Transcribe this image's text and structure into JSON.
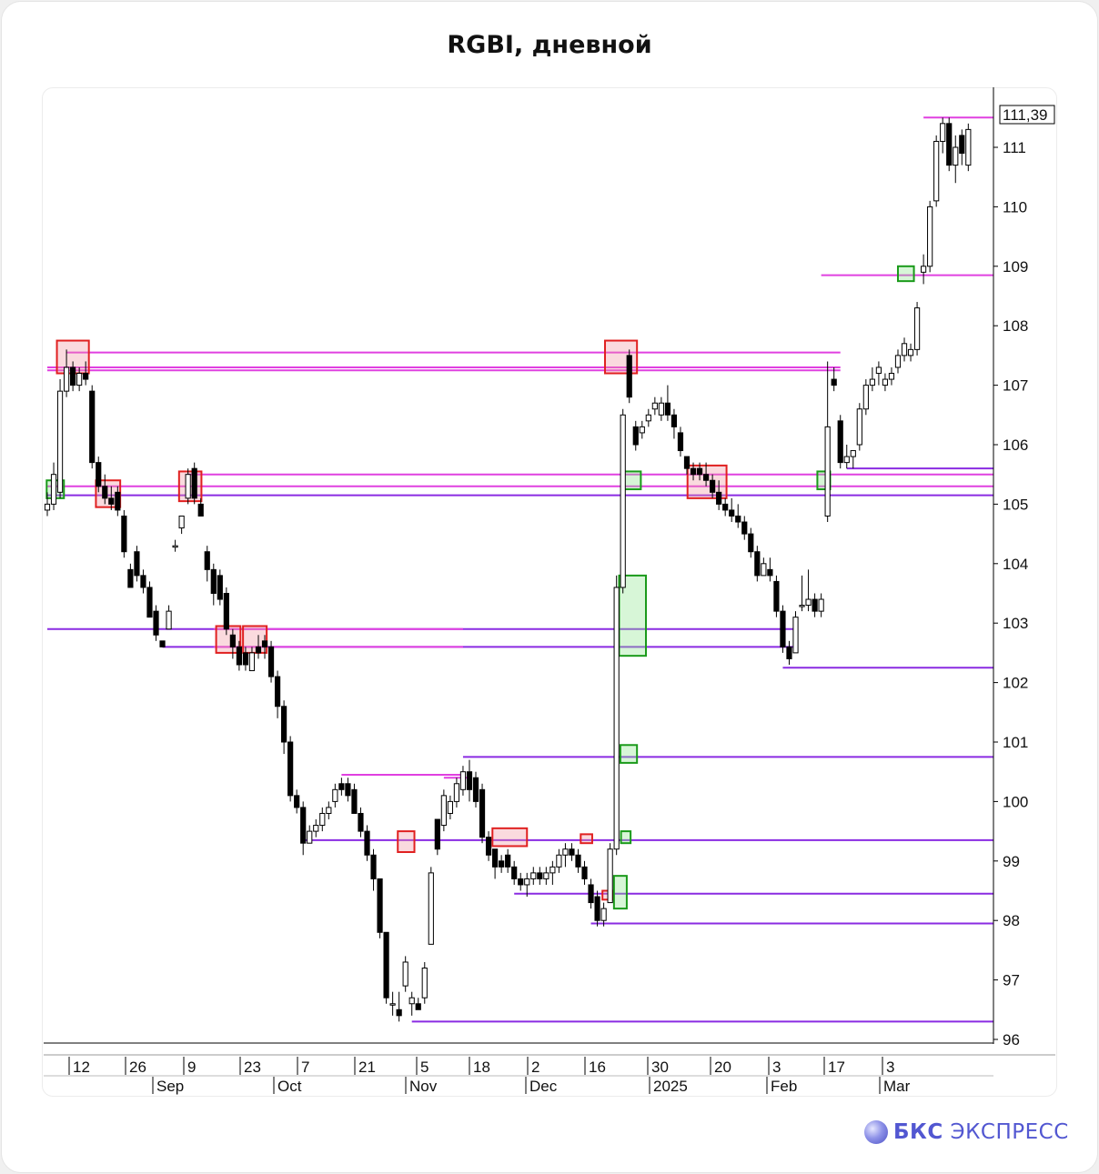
{
  "title": "RGBI, дневной",
  "logo": {
    "brand_bold": "БКС",
    "brand_rest": " ЭКСПРЕСС"
  },
  "chart_data": {
    "type": "candlestick",
    "title": "RGBI, дневной",
    "last_price_label": "111,39",
    "ylim": [
      96,
      112.5
    ],
    "y_ticks": [
      "96",
      "97",
      "98",
      "99",
      "100",
      "101",
      "102",
      "103",
      "104",
      "105",
      "106",
      "107",
      "108",
      "109",
      "110",
      "111"
    ],
    "x_day_ticks": [
      "12",
      "26",
      "9",
      "23",
      "7",
      "21",
      "5",
      "18",
      "2",
      "16",
      "30",
      "20",
      "3",
      "17",
      "3"
    ],
    "x_month_ticks": [
      "Sep",
      "Oct",
      "Nov",
      "Dec",
      "2025",
      "Feb",
      "Mar"
    ],
    "colors": {
      "down": "#000000",
      "up": "#ffffff",
      "magenta": "#e040e0",
      "purple": "#8a2be2",
      "red_box": "#e02020",
      "green_box": "#1a9a1a"
    },
    "candles": [
      [
        104.9,
        105.2,
        104.8,
        105.0
      ],
      [
        105.0,
        105.7,
        104.9,
        105.5
      ],
      [
        105.2,
        107.1,
        105.1,
        106.9
      ],
      [
        106.9,
        107.6,
        106.8,
        107.3
      ],
      [
        107.3,
        107.4,
        106.9,
        107.0
      ],
      [
        107.0,
        107.3,
        106.9,
        107.2
      ],
      [
        107.2,
        107.4,
        107.0,
        107.1
      ],
      [
        106.9,
        107.0,
        105.6,
        105.7
      ],
      [
        105.7,
        105.8,
        105.2,
        105.3
      ],
      [
        105.3,
        105.5,
        105.0,
        105.1
      ],
      [
        105.1,
        105.3,
        104.9,
        105.0
      ],
      [
        105.2,
        105.3,
        104.8,
        104.9
      ],
      [
        104.8,
        104.9,
        104.1,
        104.2
      ],
      [
        103.9,
        104.0,
        103.6,
        103.6
      ],
      [
        104.2,
        104.3,
        103.7,
        103.8
      ],
      [
        103.8,
        103.9,
        103.5,
        103.6
      ],
      [
        103.6,
        103.7,
        103.1,
        103.1
      ],
      [
        103.2,
        103.3,
        102.7,
        102.8
      ],
      [
        102.7,
        102.7,
        102.6,
        102.6
      ],
      [
        102.9,
        103.3,
        102.9,
        103.2
      ],
      [
        104.3,
        104.4,
        104.2,
        104.3
      ],
      [
        104.6,
        104.8,
        104.5,
        104.8
      ],
      [
        105.1,
        105.6,
        105.0,
        105.5
      ],
      [
        105.6,
        105.7,
        105.0,
        105.1
      ],
      [
        105.0,
        105.1,
        104.8,
        104.8
      ],
      [
        104.2,
        104.3,
        103.7,
        103.9
      ],
      [
        103.9,
        104.0,
        103.3,
        103.5
      ],
      [
        103.8,
        103.9,
        103.3,
        103.4
      ],
      [
        103.5,
        103.6,
        102.8,
        102.9
      ],
      [
        102.8,
        102.9,
        102.4,
        102.6
      ],
      [
        102.6,
        102.7,
        102.2,
        102.3
      ],
      [
        102.5,
        102.6,
        102.2,
        102.3
      ],
      [
        102.2,
        102.6,
        102.2,
        102.5
      ],
      [
        102.6,
        102.8,
        102.4,
        102.5
      ],
      [
        102.7,
        102.8,
        102.4,
        102.6
      ],
      [
        102.6,
        102.7,
        102.0,
        102.1
      ],
      [
        102.1,
        102.2,
        101.4,
        101.6
      ],
      [
        101.6,
        101.7,
        100.8,
        101.0
      ],
      [
        101.0,
        101.1,
        100.0,
        100.1
      ],
      [
        100.1,
        100.2,
        99.8,
        99.9
      ],
      [
        99.9,
        100.0,
        99.1,
        99.3
      ],
      [
        99.3,
        99.6,
        99.3,
        99.5
      ],
      [
        99.5,
        99.7,
        99.4,
        99.6
      ],
      [
        99.6,
        99.9,
        99.5,
        99.8
      ],
      [
        99.8,
        100.0,
        99.7,
        99.9
      ],
      [
        100.0,
        100.3,
        99.9,
        100.2
      ],
      [
        100.3,
        100.4,
        100.1,
        100.2
      ],
      [
        100.3,
        100.4,
        100.0,
        100.1
      ],
      [
        100.2,
        100.3,
        99.8,
        99.8
      ],
      [
        99.8,
        99.9,
        99.4,
        99.5
      ],
      [
        99.5,
        99.6,
        99.0,
        99.1
      ],
      [
        99.1,
        99.2,
        98.5,
        98.7
      ],
      [
        98.7,
        98.7,
        97.7,
        97.8
      ],
      [
        97.8,
        97.8,
        96.6,
        96.7
      ],
      [
        96.6,
        96.8,
        96.4,
        96.6
      ],
      [
        96.5,
        96.8,
        96.3,
        96.4
      ],
      [
        96.9,
        97.4,
        96.8,
        97.3
      ],
      [
        96.6,
        96.8,
        96.4,
        96.7
      ],
      [
        96.6,
        96.7,
        96.5,
        96.5
      ],
      [
        96.7,
        97.3,
        96.6,
        97.2
      ],
      [
        97.6,
        98.9,
        97.6,
        98.8
      ],
      [
        99.7,
        99.7,
        99.1,
        99.2
      ],
      [
        99.6,
        100.2,
        99.5,
        100.1
      ],
      [
        99.8,
        100.1,
        99.7,
        100.0
      ],
      [
        100.0,
        100.4,
        99.9,
        100.3
      ],
      [
        100.2,
        100.6,
        100.1,
        100.5
      ],
      [
        100.5,
        100.7,
        100.0,
        100.2
      ],
      [
        100.4,
        100.5,
        99.9,
        100.0
      ],
      [
        100.2,
        100.3,
        99.3,
        99.4
      ],
      [
        99.4,
        99.5,
        99.0,
        99.1
      ],
      [
        99.2,
        99.2,
        98.7,
        98.9
      ],
      [
        99.0,
        99.1,
        98.8,
        98.9
      ],
      [
        99.1,
        99.2,
        98.8,
        98.9
      ],
      [
        98.9,
        99.0,
        98.6,
        98.7
      ],
      [
        98.7,
        98.8,
        98.5,
        98.6
      ],
      [
        98.6,
        98.8,
        98.4,
        98.7
      ],
      [
        98.7,
        98.9,
        98.6,
        98.8
      ],
      [
        98.8,
        98.9,
        98.6,
        98.7
      ],
      [
        98.7,
        98.9,
        98.6,
        98.8
      ],
      [
        98.8,
        99.0,
        98.6,
        98.9
      ],
      [
        98.9,
        99.2,
        98.8,
        99.1
      ],
      [
        99.1,
        99.3,
        98.9,
        99.2
      ],
      [
        99.2,
        99.3,
        99.0,
        99.1
      ],
      [
        99.1,
        99.2,
        98.8,
        98.9
      ],
      [
        98.9,
        99.0,
        98.6,
        98.7
      ],
      [
        98.6,
        98.7,
        98.2,
        98.3
      ],
      [
        98.4,
        98.5,
        97.9,
        98.0
      ],
      [
        98.0,
        98.3,
        97.9,
        98.2
      ],
      [
        98.3,
        99.3,
        98.3,
        99.2
      ],
      [
        99.2,
        103.8,
        99.1,
        103.6
      ],
      [
        103.6,
        106.6,
        103.5,
        106.5
      ],
      [
        107.5,
        107.6,
        106.7,
        106.8
      ],
      [
        106.3,
        106.4,
        105.9,
        106.0
      ],
      [
        106.2,
        106.4,
        106.1,
        106.3
      ],
      [
        106.4,
        106.6,
        106.3,
        106.5
      ],
      [
        106.6,
        106.8,
        106.5,
        106.7
      ],
      [
        106.5,
        106.8,
        106.4,
        106.7
      ],
      [
        106.7,
        107.0,
        106.4,
        106.5
      ],
      [
        106.5,
        106.6,
        106.1,
        106.3
      ],
      [
        106.2,
        106.3,
        105.8,
        105.9
      ],
      [
        105.8,
        105.8,
        105.5,
        105.6
      ],
      [
        105.6,
        105.7,
        105.4,
        105.5
      ],
      [
        105.6,
        105.7,
        105.4,
        105.5
      ],
      [
        105.5,
        105.7,
        105.3,
        105.4
      ],
      [
        105.4,
        105.5,
        105.1,
        105.2
      ],
      [
        105.2,
        105.4,
        104.9,
        105.0
      ],
      [
        105.0,
        105.1,
        104.8,
        104.9
      ],
      [
        104.9,
        105.1,
        104.7,
        104.8
      ],
      [
        104.8,
        105.0,
        104.6,
        104.7
      ],
      [
        104.7,
        104.8,
        104.4,
        104.5
      ],
      [
        104.5,
        104.6,
        104.1,
        104.2
      ],
      [
        104.2,
        104.3,
        103.7,
        103.8
      ],
      [
        103.8,
        104.1,
        103.8,
        104.0
      ],
      [
        103.9,
        104.1,
        103.7,
        103.8
      ],
      [
        103.7,
        103.8,
        103.1,
        103.2
      ],
      [
        103.2,
        103.3,
        102.5,
        102.6
      ],
      [
        102.6,
        102.7,
        102.3,
        102.4
      ],
      [
        102.5,
        103.2,
        102.5,
        103.1
      ],
      [
        103.3,
        103.8,
        103.2,
        103.3
      ],
      [
        103.3,
        103.9,
        103.2,
        103.4
      ],
      [
        103.4,
        103.5,
        103.1,
        103.2
      ],
      [
        103.2,
        103.5,
        103.1,
        103.4
      ],
      [
        104.8,
        107.4,
        104.7,
        106.3
      ],
      [
        107.1,
        107.3,
        106.9,
        107.0
      ],
      [
        106.4,
        106.5,
        105.6,
        105.7
      ],
      [
        105.7,
        106.0,
        105.6,
        105.8
      ],
      [
        105.8,
        105.9,
        105.6,
        105.9
      ],
      [
        106.0,
        106.7,
        105.9,
        106.6
      ],
      [
        106.6,
        107.1,
        106.5,
        107.0
      ],
      [
        107.0,
        107.3,
        106.9,
        107.1
      ],
      [
        107.2,
        107.4,
        107.0,
        107.3
      ],
      [
        107.0,
        107.2,
        106.9,
        107.1
      ],
      [
        107.1,
        107.3,
        107.0,
        107.2
      ],
      [
        107.3,
        107.6,
        107.2,
        107.5
      ],
      [
        107.5,
        107.8,
        107.4,
        107.7
      ],
      [
        107.5,
        107.7,
        107.4,
        107.6
      ],
      [
        107.6,
        108.4,
        107.5,
        108.3
      ],
      [
        108.9,
        109.2,
        108.7,
        109.0
      ],
      [
        109.0,
        110.1,
        108.9,
        110.0
      ],
      [
        110.1,
        111.2,
        110.0,
        111.1
      ],
      [
        111.1,
        111.5,
        110.9,
        111.4
      ],
      [
        111.4,
        111.5,
        110.6,
        110.7
      ],
      [
        110.7,
        111.2,
        110.4,
        111.0
      ],
      [
        111.2,
        111.3,
        110.7,
        110.9
      ],
      [
        110.7,
        111.4,
        110.6,
        111.3
      ]
    ],
    "levels": [
      {
        "color": "magenta",
        "y": 107.55,
        "from": 3,
        "to": 124
      },
      {
        "color": "magenta",
        "y": 107.3,
        "from": 0,
        "to": 124
      },
      {
        "color": "magenta",
        "y": 107.25,
        "from": 0,
        "to": 124
      },
      {
        "color": "magenta",
        "y": 105.5,
        "from": 22,
        "to": 148
      },
      {
        "color": "magenta",
        "y": 105.3,
        "from": 0,
        "to": 148
      },
      {
        "color": "purple",
        "y": 105.15,
        "from": 0,
        "to": 148
      },
      {
        "color": "purple",
        "y": 105.6,
        "from": 125,
        "to": 148
      },
      {
        "color": "purple",
        "y": 102.9,
        "from": 0,
        "to": 117
      },
      {
        "color": "purple",
        "y": 102.6,
        "from": 18,
        "to": 117
      },
      {
        "color": "magenta",
        "y": 102.9,
        "from": 26,
        "to": 65
      },
      {
        "color": "magenta",
        "y": 102.6,
        "from": 26,
        "to": 65
      },
      {
        "color": "purple",
        "y": 102.25,
        "from": 115,
        "to": 148
      },
      {
        "color": "magenta",
        "y": 108.85,
        "from": 121,
        "to": 148
      },
      {
        "color": "magenta",
        "y": 111.5,
        "from": 137,
        "to": 148
      },
      {
        "color": "magenta",
        "y": 100.45,
        "from": 46,
        "to": 65
      },
      {
        "color": "magenta",
        "y": 100.4,
        "from": 62,
        "to": 66
      },
      {
        "color": "purple",
        "y": 100.75,
        "from": 65,
        "to": 148
      },
      {
        "color": "purple",
        "y": 99.35,
        "from": 40,
        "to": 148
      },
      {
        "color": "purple",
        "y": 98.45,
        "from": 73,
        "to": 148
      },
      {
        "color": "purple",
        "y": 97.95,
        "from": 85,
        "to": 148
      },
      {
        "color": "purple",
        "y": 96.3,
        "from": 57,
        "to": 148
      }
    ],
    "zones": [
      {
        "color": "red",
        "x0": 1.5,
        "x1": 6.5,
        "y0": 107.2,
        "y1": 107.75
      },
      {
        "color": "red",
        "x0": 87.2,
        "x1": 92.2,
        "y0": 107.2,
        "y1": 107.75
      },
      {
        "color": "red",
        "x0": 7.6,
        "x1": 11.4,
        "y0": 104.95,
        "y1": 105.4
      },
      {
        "color": "red",
        "x0": 20.6,
        "x1": 24.1,
        "y0": 105.05,
        "y1": 105.55
      },
      {
        "color": "red",
        "x0": 100.1,
        "x1": 106.2,
        "y0": 105.1,
        "y1": 105.65
      },
      {
        "color": "red",
        "x0": 26.4,
        "x1": 30.2,
        "y0": 102.5,
        "y1": 102.95
      },
      {
        "color": "red",
        "x0": 30.6,
        "x1": 34.3,
        "y0": 102.5,
        "y1": 102.95
      },
      {
        "color": "red",
        "x0": 54.8,
        "x1": 57.4,
        "y0": 99.15,
        "y1": 99.5
      },
      {
        "color": "red",
        "x0": 69.6,
        "x1": 75.0,
        "y0": 99.25,
        "y1": 99.55
      },
      {
        "color": "red",
        "x0": 83.4,
        "x1": 85.2,
        "y0": 99.3,
        "y1": 99.45
      },
      {
        "color": "red",
        "x0": 86.8,
        "x1": 88.5,
        "y0": 98.35,
        "y1": 98.5
      },
      {
        "color": "green",
        "x0": -0.1,
        "x1": 2.6,
        "y0": 105.1,
        "y1": 105.4
      },
      {
        "color": "green",
        "x0": 90.2,
        "x1": 92.8,
        "y0": 105.25,
        "y1": 105.55
      },
      {
        "color": "green",
        "x0": 89.4,
        "x1": 93.6,
        "y0": 102.45,
        "y1": 103.8
      },
      {
        "color": "green",
        "x0": 89.6,
        "x1": 92.2,
        "y0": 100.65,
        "y1": 100.95
      },
      {
        "color": "green",
        "x0": 89.7,
        "x1": 91.2,
        "y0": 99.3,
        "y1": 99.5
      },
      {
        "color": "green",
        "x0": 88.6,
        "x1": 90.6,
        "y0": 98.2,
        "y1": 98.75
      },
      {
        "color": "green",
        "x0": 120.4,
        "x1": 122.4,
        "y0": 105.25,
        "y1": 105.55
      },
      {
        "color": "green",
        "x0": 133.0,
        "x1": 135.5,
        "y0": 108.75,
        "y1": 109.0
      }
    ]
  }
}
